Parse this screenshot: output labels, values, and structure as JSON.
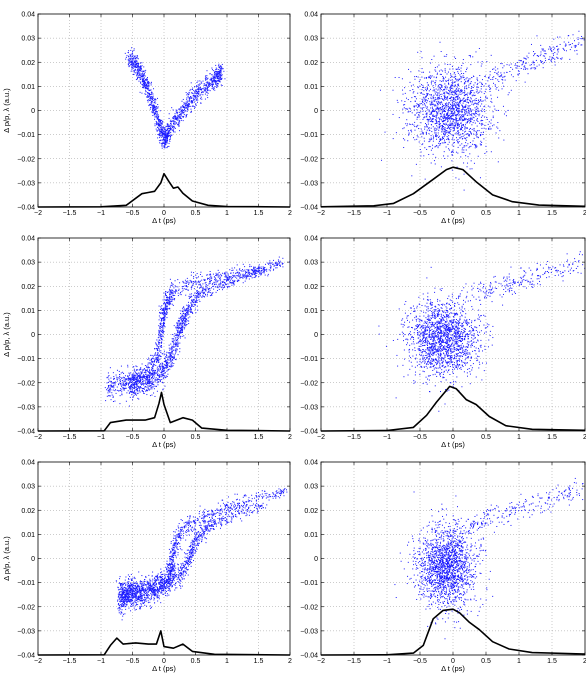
{
  "figure": {
    "background": "#ffffff",
    "scatter_color": "#1a1aff",
    "profile_color": "#000000"
  },
  "chart_data": [
    {
      "type": "scatter",
      "panel": "top-left",
      "xlabel": "Δ t (ps)",
      "ylabel": "Δ p/p, λ (a.u.)",
      "xlim": [
        -2,
        2
      ],
      "ylim": [
        -0.04,
        0.04
      ],
      "grid": true,
      "xticks": [
        "−2",
        "−1.5",
        "−1",
        "−0.5",
        "0",
        "0.5",
        "1",
        "1.5",
        "2"
      ],
      "yticks": [
        "−0.04",
        "−0.03",
        "−0.02",
        "−0.01",
        "0",
        "0.01",
        "0.02",
        "0.03",
        "0.04"
      ],
      "series": [
        {
          "kind": "scatter",
          "points": 1400,
          "path": [
            [
              -0.55,
              0.022
            ],
            [
              -0.4,
              0.017
            ],
            [
              -0.25,
              0.009
            ],
            [
              -0.1,
              -0.003
            ],
            [
              0.0,
              -0.012
            ],
            [
              0.1,
              -0.008
            ],
            [
              0.3,
              0.0
            ],
            [
              0.55,
              0.008
            ],
            [
              0.8,
              0.013
            ],
            [
              0.92,
              0.016
            ]
          ],
          "spread": [
            0.025,
            0.0022
          ]
        },
        {
          "kind": "line",
          "points": [
            [
              -2,
              -0.04
            ],
            [
              -1,
              -0.0399
            ],
            [
              -0.6,
              -0.0393
            ],
            [
              -0.35,
              -0.0345
            ],
            [
              -0.25,
              -0.034
            ],
            [
              -0.15,
              -0.0335
            ],
            [
              -0.05,
              -0.03
            ],
            [
              0.0,
              -0.0262
            ],
            [
              0.08,
              -0.0295
            ],
            [
              0.15,
              -0.0322
            ],
            [
              0.22,
              -0.0317
            ],
            [
              0.3,
              -0.0343
            ],
            [
              0.45,
              -0.0375
            ],
            [
              0.7,
              -0.0393
            ],
            [
              1.0,
              -0.0398
            ],
            [
              2,
              -0.04
            ]
          ]
        }
      ]
    },
    {
      "type": "scatter",
      "panel": "top-right",
      "xlabel": "Δ t (ps)",
      "ylabel": "",
      "xlim": [
        -2,
        2
      ],
      "ylim": [
        -0.04,
        0.04
      ],
      "grid": true,
      "xticks": [
        "−2",
        "−1.5",
        "−1",
        "−0.5",
        "0",
        "0.5",
        "1",
        "1.5",
        "2"
      ],
      "yticks": [
        "−0.04",
        "−0.03",
        "−0.02",
        "−0.01",
        "0",
        "0.01",
        "0.02",
        "0.03",
        "0.04"
      ],
      "series": [
        {
          "kind": "scatter",
          "points": 1900,
          "cloud_center": [
            -0.05,
            0.0
          ],
          "cloud_spread": [
            0.32,
            0.009
          ],
          "tail": [
            [
              0.5,
              0.012
            ],
            [
              1.0,
              0.018
            ],
            [
              1.5,
              0.024
            ],
            [
              1.95,
              0.029
            ]
          ]
        },
        {
          "kind": "line",
          "points": [
            [
              -2,
              -0.0399
            ],
            [
              -1.2,
              -0.0395
            ],
            [
              -0.9,
              -0.0385
            ],
            [
              -0.6,
              -0.0345
            ],
            [
              -0.3,
              -0.0285
            ],
            [
              -0.1,
              -0.0245
            ],
            [
              0.0,
              -0.0235
            ],
            [
              0.15,
              -0.0245
            ],
            [
              0.35,
              -0.0295
            ],
            [
              0.6,
              -0.035
            ],
            [
              0.9,
              -0.0378
            ],
            [
              1.3,
              -0.0392
            ],
            [
              2,
              -0.0397
            ]
          ]
        }
      ]
    },
    {
      "type": "scatter",
      "panel": "middle-left",
      "xlabel": "Δ t (ps)",
      "ylabel": "Δ p/p, λ (a.u.)",
      "xlim": [
        -2,
        2
      ],
      "ylim": [
        -0.04,
        0.04
      ],
      "grid": true,
      "xticks": [
        "−2",
        "−1.5",
        "−1",
        "−0.5",
        "0",
        "0.5",
        "1",
        "1.5",
        "2"
      ],
      "yticks": [
        "−0.04",
        "−0.03",
        "−0.02",
        "−0.01",
        "0",
        "0.01",
        "0.02",
        "0.03",
        "0.04"
      ],
      "series": [
        {
          "kind": "scatter",
          "points": 2200,
          "arms": [
            [
              [
                -0.9,
                -0.021
              ],
              [
                -0.6,
                -0.02
              ],
              [
                -0.4,
                -0.019
              ],
              [
                -0.25,
                -0.017
              ],
              [
                -0.12,
                -0.01
              ],
              [
                -0.05,
                0.0
              ],
              [
                0.0,
                0.009
              ],
              [
                0.05,
                0.014
              ],
              [
                0.15,
                0.018
              ],
              [
                0.5,
                0.022
              ],
              [
                1.0,
                0.025
              ],
              [
                1.5,
                0.027
              ],
              [
                1.95,
                0.03
              ]
            ],
            [
              [
                -0.5,
                -0.021
              ],
              [
                -0.2,
                -0.019
              ],
              [
                0.0,
                -0.015
              ],
              [
                0.15,
                -0.007
              ],
              [
                0.25,
                0.002
              ],
              [
                0.35,
                0.009
              ],
              [
                0.5,
                0.015
              ],
              [
                0.8,
                0.02
              ],
              [
                1.2,
                0.024
              ],
              [
                1.6,
                0.027
              ]
            ]
          ]
        },
        {
          "kind": "line",
          "points": [
            [
              -2,
              -0.04
            ],
            [
              -0.95,
              -0.0399
            ],
            [
              -0.85,
              -0.0365
            ],
            [
              -0.6,
              -0.0355
            ],
            [
              -0.3,
              -0.0355
            ],
            [
              -0.15,
              -0.0345
            ],
            [
              -0.08,
              -0.0285
            ],
            [
              -0.04,
              -0.024
            ],
            [
              0.0,
              -0.029
            ],
            [
              0.1,
              -0.0365
            ],
            [
              0.3,
              -0.0345
            ],
            [
              0.45,
              -0.0355
            ],
            [
              0.6,
              -0.0388
            ],
            [
              1.0,
              -0.0397
            ],
            [
              2,
              -0.04
            ]
          ]
        }
      ]
    },
    {
      "type": "scatter",
      "panel": "middle-right",
      "xlabel": "Δ t (ps)",
      "ylabel": "",
      "xlim": [
        -2,
        2
      ],
      "ylim": [
        -0.04,
        0.04
      ],
      "grid": true,
      "xticks": [
        "−2",
        "−1.5",
        "−1",
        "−0.5",
        "0",
        "0.5",
        "1",
        "1.5",
        "2"
      ],
      "yticks": [
        "−0.04",
        "−0.03",
        "−0.02",
        "−0.01",
        "0",
        "0.01",
        "0.02",
        "0.03",
        "0.04"
      ],
      "series": [
        {
          "kind": "scatter",
          "points": 1900,
          "cloud_center": [
            -0.15,
            -0.002
          ],
          "cloud_spread": [
            0.27,
            0.008
          ],
          "tail": [
            [
              0.3,
              0.016
            ],
            [
              0.8,
              0.021
            ],
            [
              1.3,
              0.025
            ],
            [
              1.95,
              0.029
            ]
          ]
        },
        {
          "kind": "line",
          "points": [
            [
              -2,
              -0.04
            ],
            [
              -1.0,
              -0.0398
            ],
            [
              -0.6,
              -0.0385
            ],
            [
              -0.4,
              -0.0335
            ],
            [
              -0.25,
              -0.028
            ],
            [
              -0.05,
              -0.0215
            ],
            [
              0.05,
              -0.0225
            ],
            [
              0.2,
              -0.027
            ],
            [
              0.35,
              -0.029
            ],
            [
              0.55,
              -0.034
            ],
            [
              0.8,
              -0.0378
            ],
            [
              1.2,
              -0.0393
            ],
            [
              2,
              -0.0397
            ]
          ]
        }
      ]
    },
    {
      "type": "scatter",
      "panel": "bottom-left",
      "xlabel": "Δ t (ps)",
      "ylabel": "Δ p/p, λ (a.u.)",
      "xlim": [
        -2,
        2
      ],
      "ylim": [
        -0.04,
        0.04
      ],
      "grid": true,
      "xticks": [
        "−2",
        "−1.5",
        "−1",
        "−0.5",
        "0",
        "0.5",
        "1",
        "1.5",
        "2"
      ],
      "yticks": [
        "−0.04",
        "−0.03",
        "−0.02",
        "−0.01",
        "0",
        "0.01",
        "0.02",
        "0.03",
        "0.04"
      ],
      "series": [
        {
          "kind": "scatter",
          "points": 2200,
          "arms": [
            [
              [
                -0.7,
                -0.013
              ],
              [
                -0.5,
                -0.015
              ],
              [
                -0.3,
                -0.015
              ],
              [
                -0.1,
                -0.013
              ],
              [
                0.05,
                -0.01
              ],
              [
                0.12,
                -0.004
              ],
              [
                0.15,
                0.004
              ],
              [
                0.25,
                0.011
              ],
              [
                0.5,
                0.016
              ],
              [
                0.9,
                0.02
              ],
              [
                1.3,
                0.024
              ],
              [
                1.95,
                0.028
              ]
            ],
            [
              [
                -0.7,
                -0.018
              ],
              [
                -0.55,
                -0.014
              ],
              [
                -0.4,
                -0.013
              ],
              [
                -0.2,
                -0.012
              ],
              [
                0.0,
                -0.01
              ],
              [
                0.25,
                -0.008
              ],
              [
                0.4,
                0.0
              ],
              [
                0.5,
                0.008
              ],
              [
                0.7,
                0.013
              ],
              [
                1.1,
                0.018
              ],
              [
                1.6,
                0.022
              ]
            ]
          ]
        },
        {
          "kind": "line",
          "points": [
            [
              -2,
              -0.04
            ],
            [
              -0.95,
              -0.0399
            ],
            [
              -0.85,
              -0.036
            ],
            [
              -0.75,
              -0.033
            ],
            [
              -0.65,
              -0.0355
            ],
            [
              -0.45,
              -0.035
            ],
            [
              -0.25,
              -0.0355
            ],
            [
              -0.12,
              -0.0355
            ],
            [
              -0.05,
              -0.03
            ],
            [
              0.0,
              -0.0365
            ],
            [
              0.15,
              -0.0372
            ],
            [
              0.3,
              -0.0355
            ],
            [
              0.45,
              -0.0385
            ],
            [
              0.8,
              -0.0397
            ],
            [
              2,
              -0.04
            ]
          ]
        }
      ]
    },
    {
      "type": "scatter",
      "panel": "bottom-right",
      "xlabel": "Δ t (ps)",
      "ylabel": "",
      "xlim": [
        -2,
        2
      ],
      "ylim": [
        -0.04,
        0.04
      ],
      "grid": true,
      "xticks": [
        "−2",
        "−1.5",
        "−1",
        "−0.5",
        "0",
        "0.5",
        "1",
        "1.5",
        "2"
      ],
      "yticks": [
        "−0.04",
        "−0.03",
        "−0.02",
        "−0.01",
        "0",
        "0.01",
        "0.02",
        "0.03",
        "0.04"
      ],
      "series": [
        {
          "kind": "scatter",
          "points": 1900,
          "cloud_center": [
            -0.1,
            -0.003
          ],
          "cloud_spread": [
            0.22,
            0.0085
          ],
          "tail": [
            [
              0.2,
              0.013
            ],
            [
              0.7,
              0.018
            ],
            [
              1.3,
              0.023
            ],
            [
              1.95,
              0.029
            ]
          ]
        },
        {
          "kind": "line",
          "points": [
            [
              -2,
              -0.04
            ],
            [
              -1.0,
              -0.0399
            ],
            [
              -0.6,
              -0.0392
            ],
            [
              -0.45,
              -0.036
            ],
            [
              -0.3,
              -0.025
            ],
            [
              -0.15,
              -0.0215
            ],
            [
              0.0,
              -0.021
            ],
            [
              0.1,
              -0.0225
            ],
            [
              0.25,
              -0.0265
            ],
            [
              0.4,
              -0.0295
            ],
            [
              0.6,
              -0.0345
            ],
            [
              0.85,
              -0.0375
            ],
            [
              1.2,
              -0.039
            ],
            [
              2,
              -0.0396
            ]
          ]
        }
      ]
    }
  ]
}
